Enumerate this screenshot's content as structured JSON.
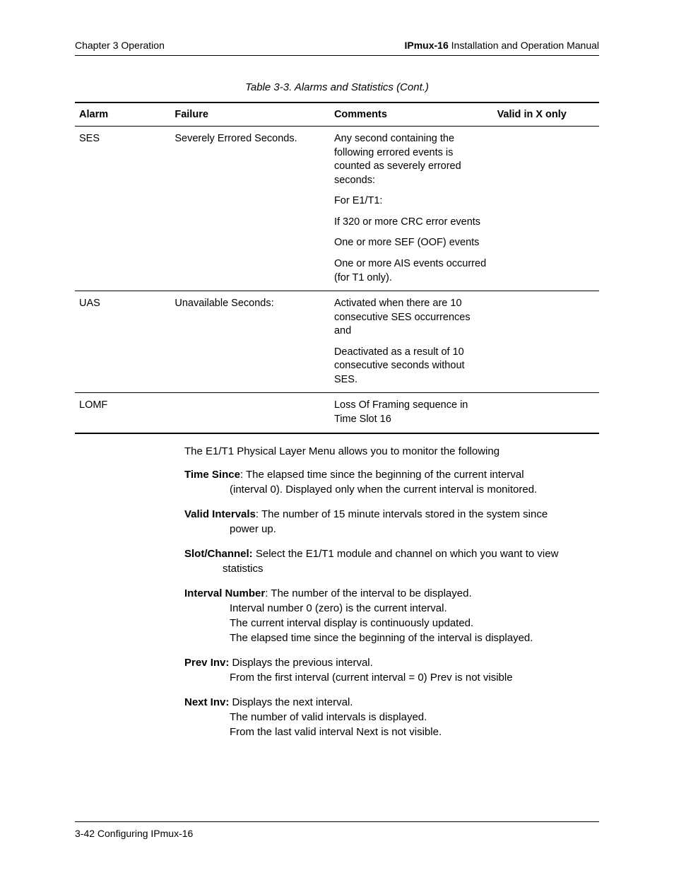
{
  "header": {
    "left": "Chapter 3  Operation",
    "right_bold": "IPmux-16",
    "right_rest": " Installation and Operation Manual"
  },
  "table": {
    "caption": "Table 3-3.  Alarms and Statistics (Cont.)",
    "columns": {
      "alarm": "Alarm",
      "failure": "Failure",
      "comments": "Comments",
      "valid": "Valid in X only"
    },
    "rows": {
      "ses": {
        "alarm": "SES",
        "failure": "Severely Errored Seconds.",
        "comments": [
          "Any second containing the following errored events is counted as severely errored seconds:",
          "For E1/T1:",
          "If 320 or more CRC error events",
          "One or more SEF (OOF) events",
          "One or more AIS events occurred (for T1 only)."
        ],
        "valid": ""
      },
      "uas": {
        "alarm": "UAS",
        "failure": "Unavailable Seconds:",
        "comments": [
          "Activated when there are 10 consecutive SES occurrences and",
          "Deactivated as a result of 10 consecutive seconds without SES."
        ],
        "valid": ""
      },
      "lomf": {
        "alarm": "LOMF",
        "failure": "",
        "comments": [
          "Loss Of Framing sequence in Time Slot 16"
        ],
        "valid": ""
      }
    }
  },
  "body": {
    "intro": "The E1/T1 Physical Layer Menu allows you to monitor the following",
    "defs": {
      "time_since": {
        "term": "Time Since",
        "sep": ": ",
        "first": "The elapsed time since the beginning of the current interval",
        "cont": "(interval 0). Displayed only when the current interval is monitored."
      },
      "valid_intervals": {
        "term": "Valid Intervals",
        "sep": ":  ",
        "first": "The number of 15 minute intervals stored in the system since",
        "cont": "power up."
      },
      "slot_channel": {
        "term": "Slot/Channel:",
        "sep": "  ",
        "first": "Select the E1/T1 module and channel on which you want to view",
        "cont": "statistics"
      },
      "interval_number": {
        "term": "Interval Number",
        "sep": ":  ",
        "first": "The number of the interval to be displayed.",
        "cont1": "Interval number 0 (zero) is the current interval.",
        "cont2": "The current interval display is continuously updated.",
        "cont3": "The elapsed time since the beginning of the interval is displayed."
      },
      "prev_inv": {
        "term": "Prev Inv:",
        "sep": "  ",
        "first": "Displays the previous interval.",
        "cont": "From the first interval (current interval = 0) Prev is not visible"
      },
      "next_inv": {
        "term": "Next Inv:",
        "sep": "  ",
        "first": "Displays the next interval.",
        "cont1": "The number of valid intervals is displayed.",
        "cont2": "From the last valid interval Next is not visible."
      }
    }
  },
  "footer": {
    "text": "3-42 Configuring IPmux-16"
  }
}
